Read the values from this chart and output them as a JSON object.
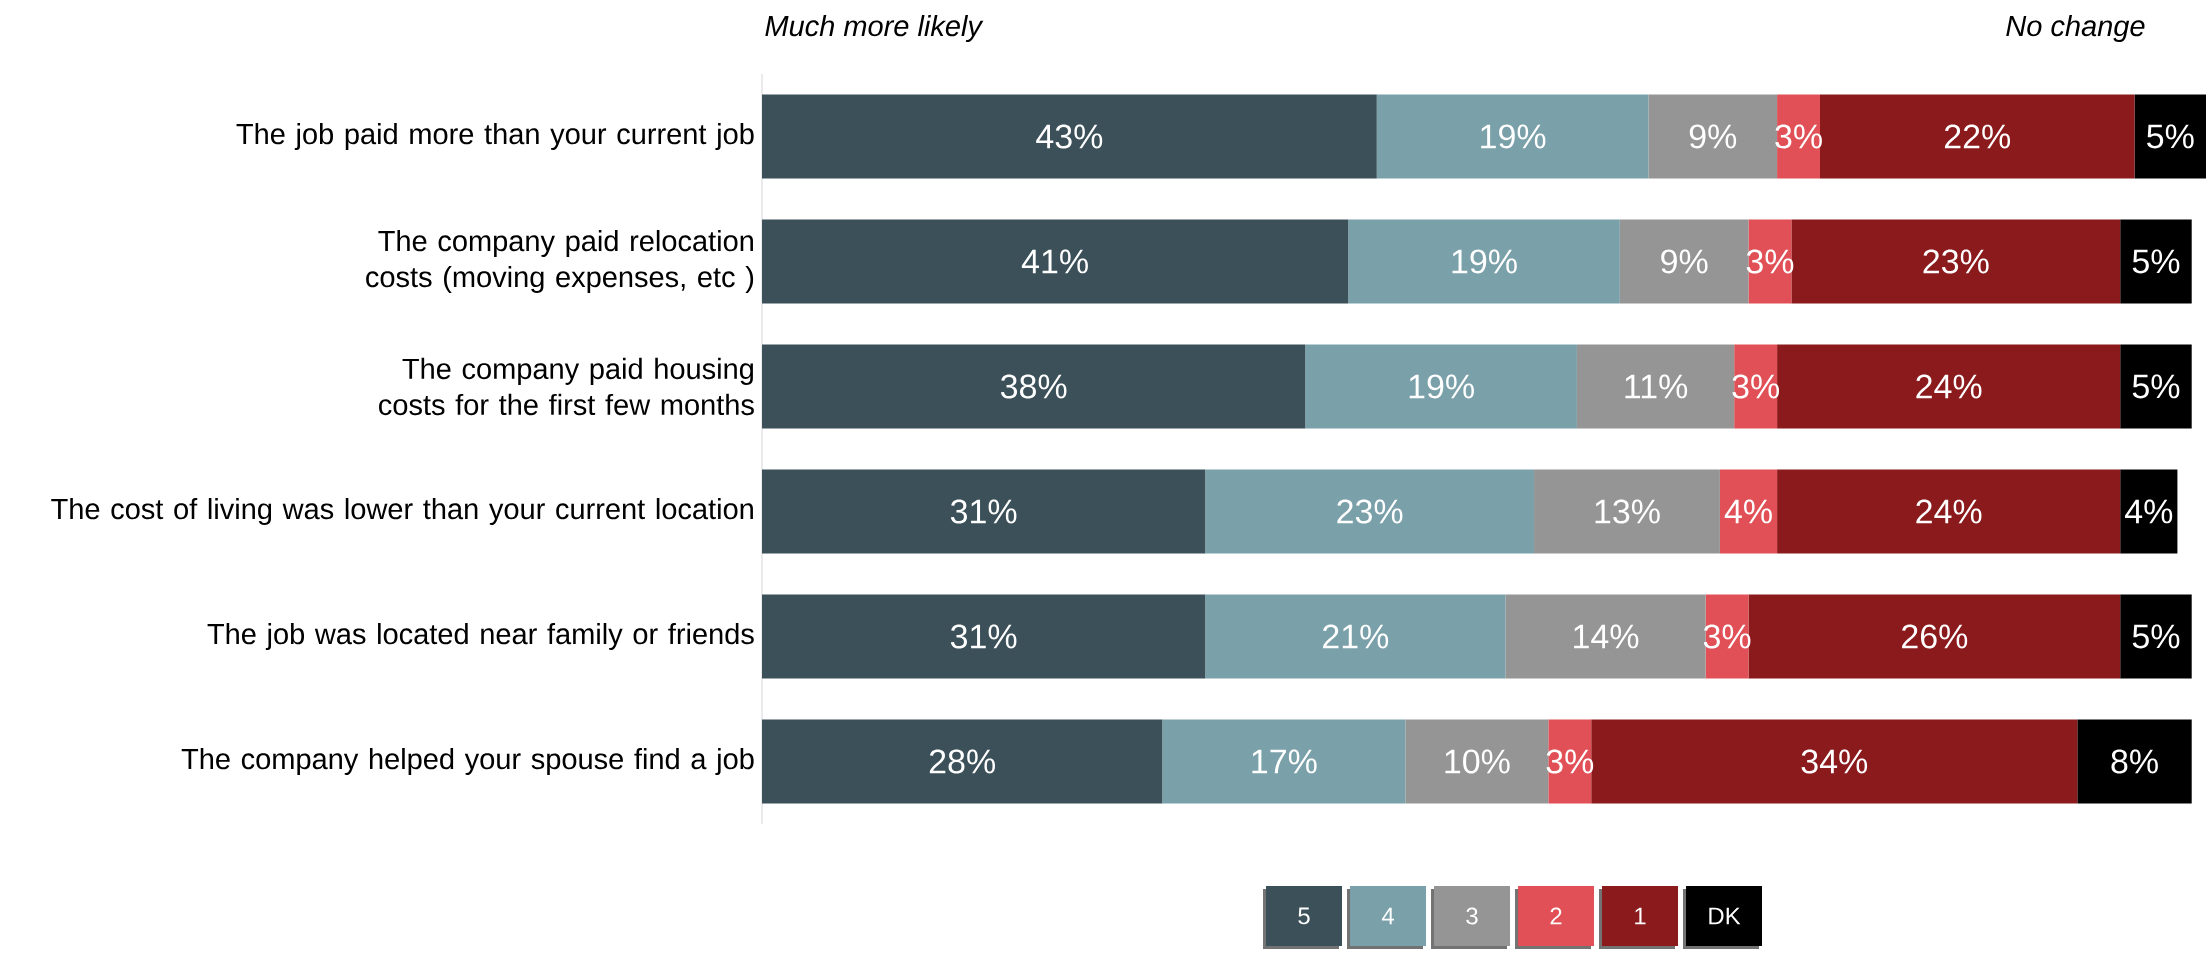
{
  "chart_data": {
    "type": "bar",
    "orientation": "horizontal",
    "stacked": true,
    "categories": [
      "The job paid more than your current job",
      "The company paid relocation costs (moving expenses, etc )",
      "The company paid housing costs for the first few months",
      "The cost of living was lower than your current location",
      "The job was located near family or friends",
      "The company helped your spouse find a job"
    ],
    "series": [
      {
        "name": "5",
        "color": "#3b5059",
        "values": [
          43,
          41,
          38,
          31,
          31,
          28
        ],
        "value_labels": [
          "43%",
          "41%",
          "38%",
          "31%",
          "31%",
          "28%"
        ]
      },
      {
        "name": "4",
        "color": "#7aa0a9",
        "values": [
          19,
          19,
          19,
          23,
          21,
          17
        ],
        "value_labels": [
          "19%",
          "19%",
          "19%",
          "23%",
          "21%",
          "17%"
        ]
      },
      {
        "name": "3",
        "color": "#959595",
        "values": [
          9,
          9,
          11,
          13,
          14,
          10
        ],
        "value_labels": [
          "9%",
          "9%",
          "11%",
          "13%",
          "14%",
          "10%"
        ]
      },
      {
        "name": "2",
        "color": "#e05056",
        "values": [
          3,
          3,
          3,
          4,
          3,
          3
        ],
        "value_labels": [
          "3%",
          "3%",
          "3%",
          "4%",
          "3%",
          "3%"
        ]
      },
      {
        "name": "1",
        "color": "#8b1a1c",
        "values": [
          22,
          23,
          24,
          24,
          26,
          34
        ],
        "value_labels": [
          "22%",
          "23%",
          "24%",
          "24%",
          "26%",
          "34%"
        ]
      },
      {
        "name": "DK",
        "color": "#000000",
        "values": [
          5,
          5,
          5,
          4,
          5,
          8
        ],
        "value_labels": [
          "5%",
          "5%",
          "5%",
          "4%",
          "5%",
          "8%"
        ]
      }
    ],
    "xlim": [
      0,
      101
    ],
    "legend": "bottom",
    "annotations": [
      "Much more likely",
      "No change"
    ]
  }
}
